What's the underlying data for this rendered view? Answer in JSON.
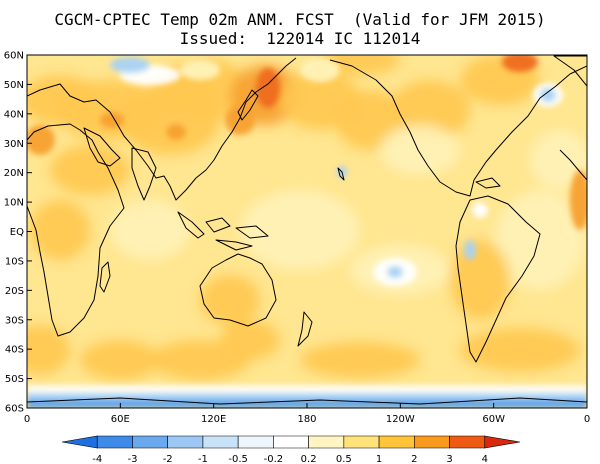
{
  "title": {
    "line1": "CGCM-CPTEC Temp 02m ANM. FCST  (Valid for JFM 2015)",
    "line2": "Issued:  122014 IC 112014"
  },
  "axes": {
    "lat_labels": [
      "60N",
      "50N",
      "40N",
      "30N",
      "20N",
      "10N",
      "EQ",
      "10S",
      "20S",
      "30S",
      "40S",
      "50S",
      "60S"
    ],
    "lat_values": [
      60,
      50,
      40,
      30,
      20,
      10,
      0,
      -10,
      -20,
      -30,
      -40,
      -50,
      -60
    ],
    "lon_labels": [
      "0",
      "60E",
      "120E",
      "180",
      "120W",
      "60W",
      "0"
    ],
    "lon_values": [
      0,
      60,
      120,
      180,
      240,
      300,
      360
    ]
  },
  "colorbar": {
    "labels": [
      "-4",
      "-3",
      "-2",
      "-1",
      "-0.5",
      "-0.2",
      "0.2",
      "0.5",
      "1",
      "2",
      "3",
      "4"
    ],
    "colors": [
      "#1e6fe0",
      "#3d8ae8",
      "#6aa9ee",
      "#9cc8f3",
      "#c8e2f8",
      "#eef6fc",
      "#ffffff",
      "#fff5c2",
      "#ffe27a",
      "#ffc43a",
      "#f79a1e",
      "#ee5a14",
      "#d8280e"
    ]
  },
  "map_colors": {
    "ocean_base": "#ffe690",
    "warm": "#ffc850",
    "hot": "#f7a030",
    "very_hot": "#ee6a1a",
    "pale": "#fff2b8",
    "cool": "#ffffff",
    "cold": "#a8d2f4",
    "very_cold": "#5aa0ea"
  }
}
